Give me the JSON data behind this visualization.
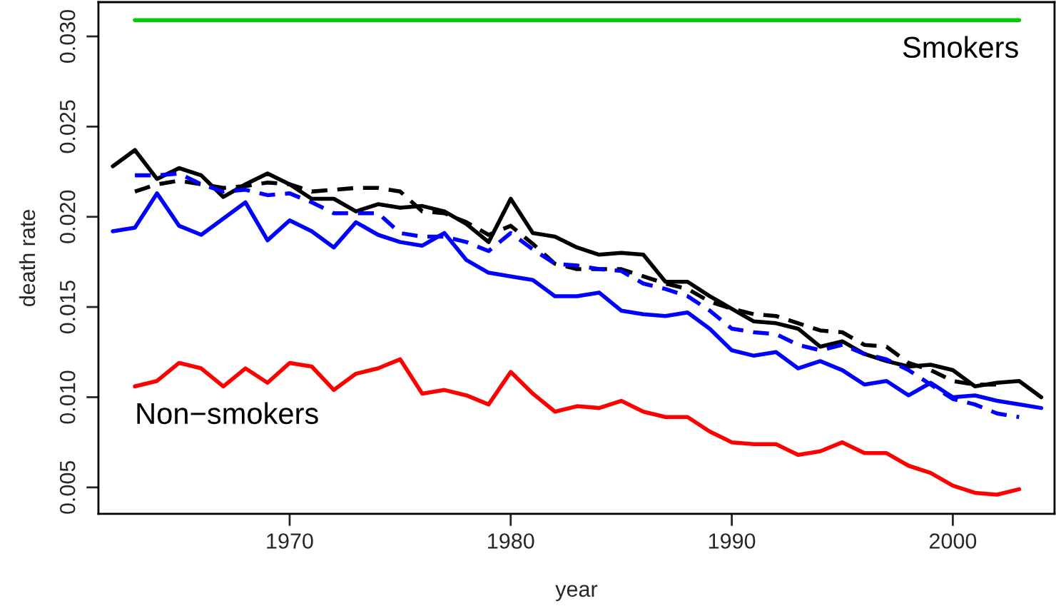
{
  "chart_data": {
    "type": "line",
    "xlabel": "year",
    "ylabel": "death rate",
    "xlim": [
      1961.35,
      2004.6
    ],
    "ylim": [
      0.00353,
      0.0319
    ],
    "xticks": [
      1970,
      1980,
      1990,
      2000
    ],
    "yticks": [
      {
        "value": 0.005,
        "label": "0.005"
      },
      {
        "value": 0.01,
        "label": "0.010"
      },
      {
        "value": 0.015,
        "label": "0.015"
      },
      {
        "value": 0.02,
        "label": "0.020"
      },
      {
        "value": 0.025,
        "label": "0.025"
      },
      {
        "value": 0.03,
        "label": "0.030"
      }
    ],
    "grid": false,
    "legend": false,
    "series": [
      {
        "name": "Smokers",
        "color": "#00cd00",
        "line_style": "solid",
        "x": [
          1963,
          2003
        ],
        "values": [
          0.0309,
          0.0309
        ]
      },
      {
        "color": "#000000",
        "line_style": "solid",
        "x": [
          1962,
          1963,
          1964,
          1965,
          1966,
          1967,
          1968,
          1969,
          1970,
          1971,
          1972,
          1973,
          1974,
          1975,
          1976,
          1977,
          1978,
          1979,
          1980,
          1981,
          1982,
          1983,
          1984,
          1985,
          1986,
          1987,
          1988,
          1989,
          1990,
          1991,
          1992,
          1993,
          1994,
          1995,
          1996,
          1997,
          1998,
          1999,
          2000,
          2001,
          2002,
          2003,
          2004
        ],
        "values": [
          0.0228,
          0.0237,
          0.0221,
          0.0227,
          0.0223,
          0.0211,
          0.0218,
          0.0224,
          0.0218,
          0.021,
          0.021,
          0.0203,
          0.0207,
          0.0205,
          0.0206,
          0.0203,
          0.0196,
          0.0186,
          0.021,
          0.0191,
          0.0189,
          0.0183,
          0.0179,
          0.018,
          0.0179,
          0.0164,
          0.0164,
          0.0156,
          0.0149,
          0.0142,
          0.0141,
          0.0138,
          0.0128,
          0.0131,
          0.0124,
          0.012,
          0.0117,
          0.0118,
          0.0115,
          0.0106,
          0.0108,
          0.0109,
          0.01
        ]
      },
      {
        "color": "#000000",
        "line_style": "dashed",
        "x": [
          1963,
          1964,
          1965,
          1966,
          1967,
          1968,
          1969,
          1970,
          1971,
          1972,
          1973,
          1974,
          1975,
          1976,
          1977,
          1978,
          1979,
          1980,
          1981,
          1982,
          1983,
          1984,
          1985,
          1986,
          1987,
          1988,
          1989,
          1990,
          1991,
          1992,
          1993,
          1994,
          1995,
          1996,
          1997,
          1998,
          1999,
          2000,
          2001,
          2002
        ],
        "values": [
          0.0214,
          0.0218,
          0.022,
          0.0218,
          0.0216,
          0.0217,
          0.0219,
          0.0218,
          0.0214,
          0.0215,
          0.0216,
          0.0216,
          0.0214,
          0.0203,
          0.0202,
          0.0197,
          0.019,
          0.0195,
          0.0185,
          0.0174,
          0.0171,
          0.0171,
          0.0171,
          0.0167,
          0.0163,
          0.016,
          0.0153,
          0.0149,
          0.0146,
          0.0145,
          0.0141,
          0.0137,
          0.0136,
          0.0129,
          0.0128,
          0.0119,
          0.0115,
          0.0109,
          0.0107,
          0.0107
        ]
      },
      {
        "color": "#0000ff",
        "line_style": "solid",
        "x": [
          1962,
          1963,
          1964,
          1965,
          1966,
          1967,
          1968,
          1969,
          1970,
          1971,
          1972,
          1973,
          1974,
          1975,
          1976,
          1977,
          1978,
          1979,
          1980,
          1981,
          1982,
          1983,
          1984,
          1985,
          1986,
          1987,
          1988,
          1989,
          1990,
          1991,
          1992,
          1993,
          1994,
          1995,
          1996,
          1997,
          1998,
          1999,
          2000,
          2001,
          2002,
          2003,
          2004
        ],
        "values": [
          0.0192,
          0.0194,
          0.0213,
          0.0195,
          0.019,
          0.0199,
          0.0208,
          0.0187,
          0.0198,
          0.0192,
          0.0183,
          0.0197,
          0.019,
          0.0186,
          0.0184,
          0.0191,
          0.0176,
          0.0169,
          0.0167,
          0.0165,
          0.0156,
          0.0156,
          0.0158,
          0.0148,
          0.0146,
          0.0145,
          0.0147,
          0.0138,
          0.0126,
          0.0123,
          0.0125,
          0.0116,
          0.012,
          0.0115,
          0.0107,
          0.0109,
          0.0101,
          0.0108,
          0.01,
          0.0101,
          0.0098,
          0.0096,
          0.0094
        ]
      },
      {
        "color": "#0000ff",
        "line_style": "dashed",
        "x": [
          1963,
          1964,
          1965,
          1966,
          1967,
          1968,
          1969,
          1970,
          1971,
          1972,
          1973,
          1974,
          1975,
          1976,
          1977,
          1978,
          1979,
          1980,
          1981,
          1982,
          1983,
          1984,
          1985,
          1986,
          1987,
          1988,
          1989,
          1990,
          1991,
          1992,
          1993,
          1994,
          1995,
          1996,
          1997,
          1998,
          1999,
          2000,
          2001,
          2002,
          2003
        ],
        "values": [
          0.0223,
          0.0223,
          0.0224,
          0.0218,
          0.0214,
          0.0215,
          0.0212,
          0.0213,
          0.0208,
          0.0202,
          0.0202,
          0.0202,
          0.0191,
          0.0189,
          0.0189,
          0.0186,
          0.0181,
          0.0191,
          0.0182,
          0.0174,
          0.0173,
          0.0171,
          0.017,
          0.0163,
          0.016,
          0.0156,
          0.0148,
          0.0138,
          0.0136,
          0.0135,
          0.0129,
          0.0126,
          0.0129,
          0.0124,
          0.0121,
          0.0115,
          0.0107,
          0.0099,
          0.0096,
          0.0091,
          0.0089
        ]
      },
      {
        "name": "Non−smokers",
        "color": "#ff0000",
        "line_style": "solid",
        "x": [
          1963,
          1964,
          1965,
          1966,
          1967,
          1968,
          1969,
          1970,
          1971,
          1972,
          1973,
          1974,
          1975,
          1976,
          1977,
          1978,
          1979,
          1980,
          1981,
          1982,
          1983,
          1984,
          1985,
          1986,
          1987,
          1988,
          1989,
          1990,
          1991,
          1992,
          1993,
          1994,
          1995,
          1996,
          1997,
          1998,
          1999,
          2000,
          2001,
          2002,
          2003
        ],
        "values": [
          0.0106,
          0.0109,
          0.0119,
          0.0116,
          0.0106,
          0.0116,
          0.0108,
          0.0119,
          0.0117,
          0.0104,
          0.0113,
          0.0116,
          0.0121,
          0.0102,
          0.0104,
          0.0101,
          0.0096,
          0.0114,
          0.0102,
          0.0092,
          0.0095,
          0.0094,
          0.0098,
          0.0092,
          0.0089,
          0.0089,
          0.0081,
          0.0075,
          0.0074,
          0.0074,
          0.0068,
          0.007,
          0.0075,
          0.0069,
          0.0069,
          0.0062,
          0.0058,
          0.0051,
          0.0047,
          0.0046,
          0.0049
        ]
      }
    ]
  }
}
